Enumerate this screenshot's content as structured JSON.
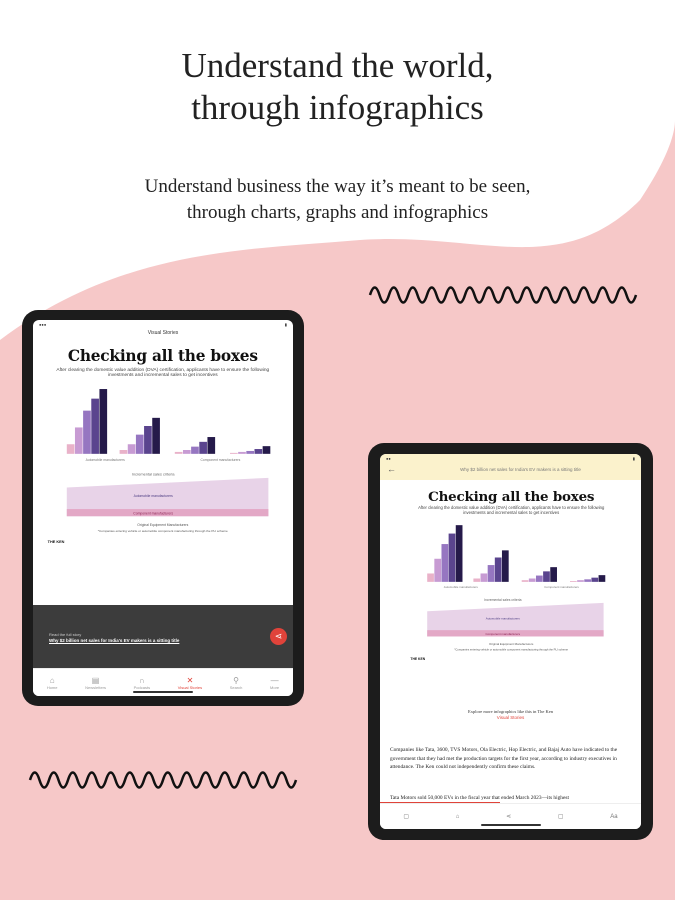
{
  "headline": "Understand the world,\nthrough infographics",
  "subheadline": "Understand business the way it’s meant to be seen,\nthrough charts, graphs and infographics",
  "colors": {
    "pink": "#f6c8c8",
    "accent": "#e0433a",
    "bars": [
      "#e9b2c9",
      "#c79bd3",
      "#9676c1",
      "#5a448e",
      "#251a4a"
    ]
  },
  "infographic": {
    "title": "Checking all the boxes",
    "subtitle": "After clearing the domestic value addition (DVA) certification, applicants have to ensure the following investments and incremental sales to get incentives",
    "group_labels": [
      "Automobile manufacturers",
      "Component manufacturers"
    ],
    "footnote1": "Original Equipment Manufacturers",
    "footnote2": "*Companies entering vehicle or automobile component manufacturing through the PLI scheme",
    "logo": "THE KEN",
    "area_labels": [
      "Incremental sales criteria",
      "Automobile manufacturers",
      "Component manufacturers"
    ]
  },
  "left_tablet": {
    "header": "Visual Stories",
    "read_label": "Read the full story",
    "story_link": "Why $2 billion net sales for India's EV makers is a sitting title",
    "share_icon": "share-icon",
    "nav": [
      {
        "label": "Home",
        "icon": "home-icon"
      },
      {
        "label": "Newsletters",
        "icon": "newsletter-icon"
      },
      {
        "label": "Podcasts",
        "icon": "headphones-icon"
      },
      {
        "label": "Visual Stories",
        "icon": "chart-icon",
        "active": true
      },
      {
        "label": "Search",
        "icon": "search-icon"
      },
      {
        "label": "More",
        "icon": "menu-icon"
      }
    ]
  },
  "right_tablet": {
    "header": "Why $2 billion net sales for India's EV makers is a sitting title",
    "explore": "Explore more infographics like this in The Ken",
    "explore_link": "Visual Stories",
    "para1": "Companies like Tata, 3600, TVS Motors, Ola Electric, Hop Electric, and Bajaj Auto have indicated to the government that they had met the production targets for the first year, according to industry executives in attendance. The Ken could not independently confirm these claims.",
    "para2": "Tata Motors sold 50,000 EVs in the fiscal year that ended March 2023—its highest",
    "font_label": "Aa"
  }
}
